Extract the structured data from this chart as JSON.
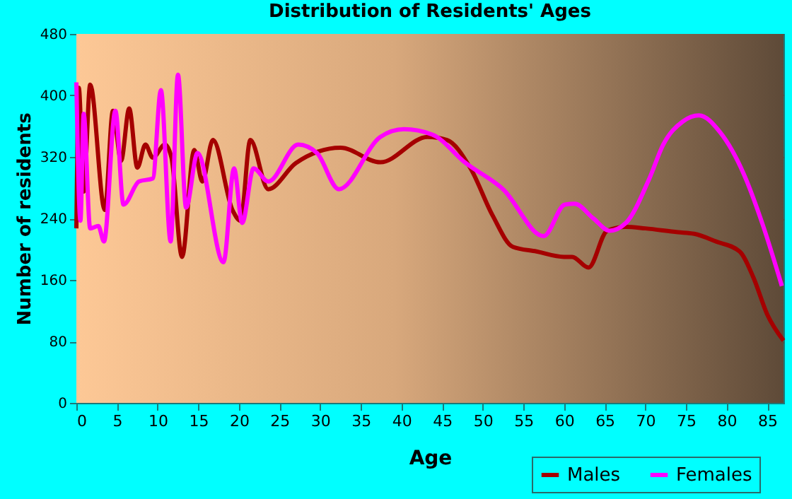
{
  "chart_data": {
    "type": "line",
    "title": "Distribution of Residents' Ages",
    "xlabel": "Age",
    "ylabel": "Number of residents",
    "xlim": [
      0,
      87
    ],
    "xticks": [
      0,
      5,
      10,
      15,
      20,
      25,
      30,
      35,
      40,
      45,
      50,
      55,
      60,
      65,
      70,
      75,
      80,
      85
    ],
    "ylim": [
      0,
      480
    ],
    "yticks": [
      0,
      80,
      160,
      240,
      320,
      400,
      480
    ],
    "grid": true,
    "legend": "bottom right",
    "line_style": "solid",
    "series": [
      {
        "name": "Males",
        "color": "#a50000",
        "x": [
          0,
          0.3,
          0.9,
          1.7,
          3.5,
          4.5,
          5.5,
          6.5,
          7.5,
          8.5,
          9.4,
          10.9,
          11.7,
          13,
          14.5,
          15.5,
          16.8,
          19.2,
          20.2,
          21.4,
          23.6,
          27,
          32.5,
          37.4,
          43.2,
          45.6,
          48.5,
          51.2,
          53.7,
          56.6,
          60,
          61,
          63,
          65.3,
          67.6,
          70,
          74,
          76,
          78.7,
          81.6,
          83.3,
          85,
          87
        ],
        "values": [
          227,
          410,
          275,
          414,
          251,
          380,
          315,
          383,
          306,
          336,
          319,
          336,
          319,
          190,
          329,
          288,
          342,
          251,
          237,
          342,
          278,
          312,
          332,
          313,
          346,
          342,
          305,
          244,
          203,
          197,
          190,
          190,
          176,
          224,
          229,
          227,
          222,
          220,
          210,
          197,
          163,
          115,
          81
        ]
      },
      {
        "name": "Females",
        "color": "#ff00ff",
        "x": [
          0,
          0.5,
          0.9,
          1.7,
          2.7,
          3.4,
          4.8,
          5.8,
          7.7,
          9.4,
          10.4,
          11.6,
          12.5,
          13.5,
          14.9,
          18.1,
          19.4,
          20.4,
          21.8,
          23.6,
          27.3,
          29.6,
          32.3,
          37.4,
          40.3,
          43.8,
          47.9,
          52.5,
          57.5,
          60.1,
          61.3,
          63.6,
          65.6,
          67.6,
          70.5,
          72.2,
          74.6,
          76.6,
          79.2,
          82.1,
          84.5,
          86.8
        ],
        "values": [
          417,
          237,
          376,
          227,
          230,
          210,
          380,
          258,
          288,
          292,
          407,
          210,
          427,
          254,
          325,
          183,
          305,
          234,
          305,
          288,
          336,
          325,
          278,
          346,
          356,
          349,
          312,
          278,
          217,
          258,
          259,
          240,
          224,
          234,
          292,
          336,
          366,
          374,
          352,
          298,
          230,
          152
        ]
      }
    ]
  }
}
